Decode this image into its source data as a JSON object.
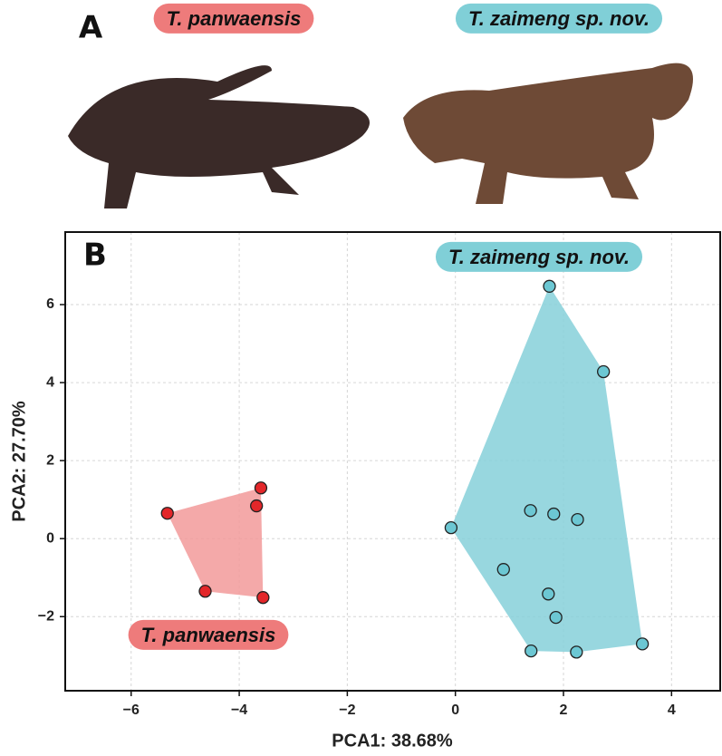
{
  "figure": {
    "panel_a_label": "A",
    "panel_b_label": "B",
    "photo_labels": [
      "T. panwaensis",
      "T. zaimeng sp. nov."
    ]
  },
  "chart_data": {
    "type": "scatter",
    "x_label": "PCA1: 38.68%",
    "y_label": "PCA2: 27.70%",
    "xlim": [
      -7.22,
      4.9
    ],
    "ylim": [
      -3.9,
      7.86
    ],
    "xticks": [
      {
        "value": -6,
        "label": "−6"
      },
      {
        "value": -4,
        "label": "−4"
      },
      {
        "value": -2,
        "label": "−2"
      },
      0,
      2,
      4
    ],
    "yticks": [
      {
        "value": -2,
        "label": "−2"
      },
      0,
      2,
      4,
      6
    ],
    "grid": true,
    "series": [
      {
        "name": "T. panwaensis",
        "color": "#e3272a",
        "hull_color": "#f29a9a",
        "x": [
          -5.33,
          -3.6,
          -3.68,
          -4.63,
          -3.56
        ],
        "y": [
          0.65,
          1.3,
          0.84,
          -1.35,
          -1.51
        ]
      },
      {
        "name": "T. zaimeng sp. nov.",
        "color": "#6cc7d3",
        "hull_color": "#86d0d9",
        "x": [
          1.74,
          2.74,
          -0.08,
          1.39,
          1.82,
          2.26,
          0.89,
          1.72,
          1.86,
          1.4,
          2.24,
          3.46
        ],
        "y": [
          6.47,
          4.28,
          0.28,
          0.72,
          0.63,
          0.49,
          -0.79,
          -1.42,
          -2.02,
          -2.88,
          -2.91,
          -2.7
        ]
      }
    ]
  }
}
